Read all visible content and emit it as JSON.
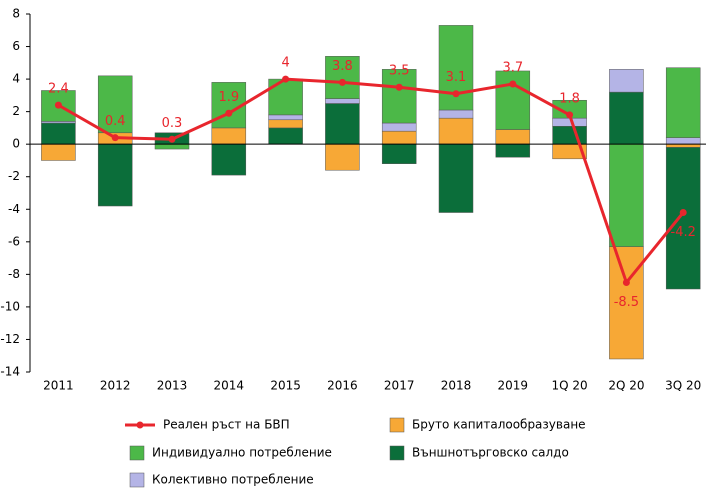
{
  "chart_data": {
    "type": "stacked-bar-line",
    "categories": [
      "2011",
      "2012",
      "2013",
      "2014",
      "2015",
      "2016",
      "2017",
      "2018",
      "2019",
      "1Q 20",
      "2Q 20",
      "3Q 20"
    ],
    "line": {
      "name": "Реален ръст на БВП",
      "color": "#e8262d",
      "values": [
        2.4,
        0.4,
        0.3,
        1.9,
        4.0,
        3.8,
        3.5,
        3.1,
        3.7,
        1.8,
        -8.5,
        -4.2
      ]
    },
    "series": [
      {
        "name": "Бруто капиталообразуване",
        "color": "#f7a836",
        "values": [
          -1.0,
          0.7,
          0,
          1.0,
          0.5,
          -1.6,
          0.8,
          1.6,
          0.9,
          -0.9,
          -6.9,
          -0.2
        ]
      },
      {
        "name": "Индивидуално потребление",
        "color": "#4cb848",
        "values": [
          1.9,
          3.5,
          -0.3,
          2.8,
          2.2,
          2.6,
          3.3,
          5.2,
          3.6,
          1.1,
          -6.3,
          4.3
        ]
      },
      {
        "name": "Външнотърговско салдо",
        "color": "#0b6e3a",
        "values": [
          1.3,
          -3.8,
          0.7,
          -1.9,
          1.0,
          2.5,
          -1.2,
          -4.2,
          -0.8,
          1.1,
          3.2,
          -8.7
        ]
      },
      {
        "name": "Колективно потребление",
        "color": "#b4b4e6",
        "values": [
          0.1,
          0,
          0,
          0,
          0.3,
          0.3,
          0.5,
          0.5,
          0,
          0.5,
          1.4,
          0.4
        ]
      }
    ],
    "ylim": [
      -14,
      8
    ],
    "yticks": [
      8,
      6,
      4,
      2,
      0,
      -2,
      -4,
      -6,
      -8,
      -10,
      -12,
      -14
    ]
  }
}
